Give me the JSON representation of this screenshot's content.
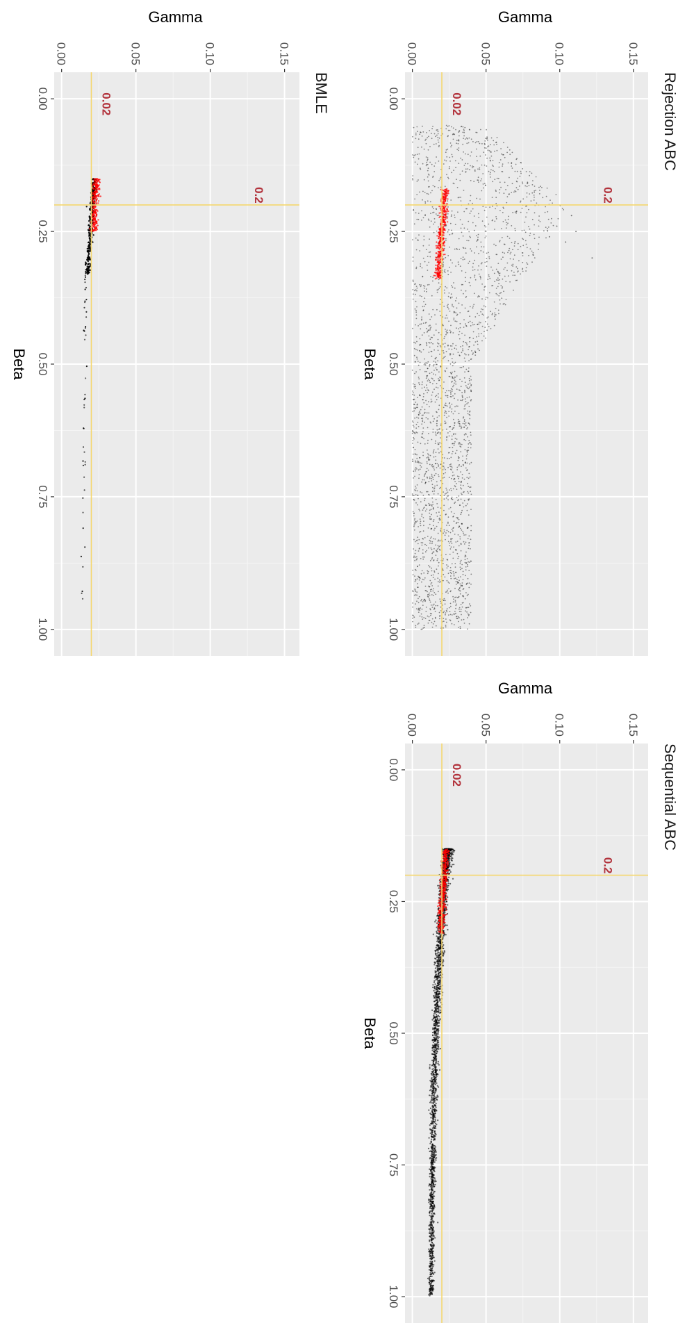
{
  "chart_data": [
    {
      "type": "scatter",
      "title": "Rejection ABC",
      "xlabel": "Beta",
      "ylabel": "Gamma",
      "xlim": [
        -0.05,
        1.05
      ],
      "ylim": [
        -0.005,
        0.16
      ],
      "xticks": [
        "0.00",
        "0.25",
        "0.50",
        "0.75",
        "1.00"
      ],
      "xtick_values": [
        0,
        0.25,
        0.5,
        0.75,
        1.0
      ],
      "yticks": [
        "0.00",
        "0.05",
        "0.10",
        "0.15"
      ],
      "ytick_values": [
        0,
        0.05,
        0.1,
        0.15
      ],
      "reference_lines": {
        "beta": 0.2,
        "gamma": 0.02,
        "beta_label": "0.2",
        "gamma_label": "0.02"
      },
      "grid": true,
      "series": [
        {
          "color": "#000000",
          "description_points": [
            [
              0.05,
              0.0
            ],
            [
              0.05,
              0.05
            ],
            [
              0.2,
              0.105
            ],
            [
              0.3,
              0.12
            ],
            [
              0.5,
              0.04
            ],
            [
              1.0,
              0.04
            ],
            [
              1.0,
              0.0
            ]
          ]
        },
        {
          "color": "#ff0000",
          "description_points": [
            [
              0.17,
              0.022
            ],
            [
              0.2,
              0.021
            ],
            [
              0.25,
              0.019
            ],
            [
              0.3,
              0.018
            ],
            [
              0.34,
              0.017
            ]
          ]
        }
      ]
    },
    {
      "type": "scatter",
      "title": "Sequential ABC",
      "xlabel": "Beta",
      "ylabel": "Gamma",
      "xlim": [
        -0.05,
        1.05
      ],
      "ylim": [
        -0.005,
        0.16
      ],
      "xticks": [
        "0.00",
        "0.25",
        "0.50",
        "0.75",
        "1.00"
      ],
      "xtick_values": [
        0,
        0.25,
        0.5,
        0.75,
        1.0
      ],
      "yticks": [
        "0.00",
        "0.05",
        "0.10",
        "0.15"
      ],
      "ytick_values": [
        0,
        0.05,
        0.1,
        0.15
      ],
      "reference_lines": {
        "beta": 0.2,
        "gamma": 0.02,
        "beta_label": "0.2",
        "gamma_label": "0.02"
      },
      "grid": true,
      "series": [
        {
          "color": "#000000",
          "description_points": [
            [
              0.15,
              0.022
            ],
            [
              0.25,
              0.019
            ],
            [
              0.5,
              0.015
            ],
            [
              0.75,
              0.014
            ],
            [
              1.0,
              0.013
            ]
          ]
        },
        {
          "color": "#ff0000",
          "description_points": [
            [
              0.15,
              0.023
            ],
            [
              0.2,
              0.021
            ],
            [
              0.25,
              0.02
            ],
            [
              0.3,
              0.019
            ]
          ]
        }
      ]
    },
    {
      "type": "scatter",
      "title": "BMLE",
      "xlabel": "Beta",
      "ylabel": "Gamma",
      "xlim": [
        -0.05,
        1.05
      ],
      "ylim": [
        -0.005,
        0.16
      ],
      "xticks": [
        "0.00",
        "0.25",
        "0.50",
        "0.75",
        "1.00"
      ],
      "xtick_values": [
        0,
        0.25,
        0.5,
        0.75,
        1.0
      ],
      "yticks": [
        "0.00",
        "0.05",
        "0.10",
        "0.15"
      ],
      "ytick_values": [
        0,
        0.05,
        0.1,
        0.15
      ],
      "reference_lines": {
        "beta": 0.2,
        "gamma": 0.02,
        "beta_label": "0.2",
        "gamma_label": "0.02"
      },
      "grid": true,
      "series": [
        {
          "color": "#000000",
          "description_points": [
            [
              0.15,
              0.022
            ],
            [
              0.25,
              0.019
            ],
            [
              0.5,
              0.016
            ],
            [
              0.75,
              0.015
            ],
            [
              0.95,
              0.014
            ]
          ]
        },
        {
          "color": "#ff0000",
          "description_points": [
            [
              0.15,
              0.024
            ],
            [
              0.2,
              0.023
            ],
            [
              0.25,
              0.021
            ]
          ]
        }
      ]
    }
  ],
  "colors": {
    "panel_background": "#ebebeb",
    "grid_major": "#ffffff",
    "reference_line": "#f5d76e",
    "reference_label": "#b2323b"
  }
}
